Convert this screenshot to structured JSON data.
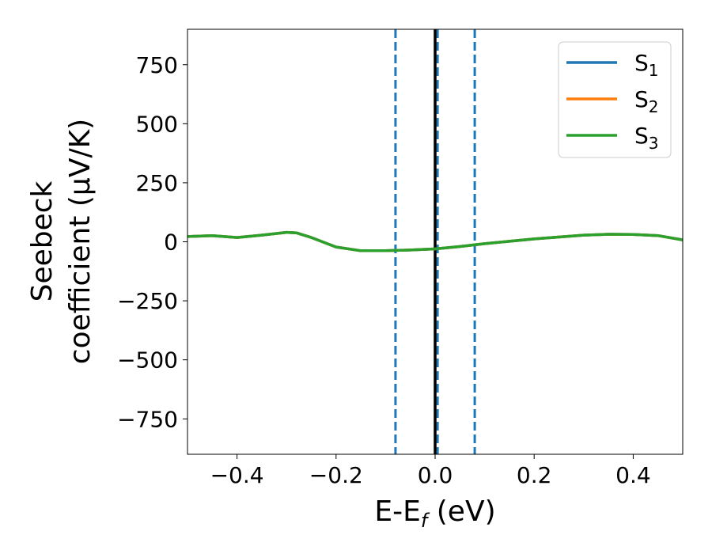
{
  "chart_data": {
    "type": "line",
    "xlabel": {
      "main": "E-E",
      "sub": "f",
      "tail": " (eV)"
    },
    "ylabel": {
      "line1": "Seebeck",
      "line2": "coefficient  (μV/K)"
    },
    "xlim": [
      -0.5,
      0.5
    ],
    "ylim": [
      -900,
      900
    ],
    "x_ticks": [
      -0.4,
      -0.2,
      0.0,
      0.2,
      0.4
    ],
    "x_tick_labels": [
      "−0.4",
      "−0.2",
      "0.0",
      "0.2",
      "0.4"
    ],
    "y_ticks": [
      750,
      500,
      250,
      0,
      -250,
      -500,
      -750
    ],
    "y_tick_labels": [
      "750",
      "500",
      "250",
      "0",
      "−250",
      "−500",
      "−750"
    ],
    "legend_position": "top-right",
    "grid": false,
    "x": [
      -0.5,
      -0.45,
      -0.4,
      -0.35,
      -0.3,
      -0.28,
      -0.25,
      -0.2,
      -0.15,
      -0.1,
      -0.05,
      0.0,
      0.05,
      0.1,
      0.15,
      0.2,
      0.25,
      0.3,
      0.35,
      0.4,
      0.45,
      0.5
    ],
    "series": [
      {
        "name": "S",
        "sub": "1",
        "color": "#1f77b4",
        "values": [
          22,
          26,
          18,
          28,
          40,
          38,
          18,
          -22,
          -38,
          -38,
          -35,
          -30,
          -20,
          -8,
          2,
          12,
          20,
          28,
          32,
          31,
          26,
          8
        ]
      },
      {
        "name": "S",
        "sub": "2",
        "color": "#ff7f0e",
        "values": [
          22,
          26,
          18,
          28,
          40,
          38,
          18,
          -22,
          -38,
          -38,
          -35,
          -30,
          -20,
          -8,
          2,
          12,
          20,
          28,
          32,
          31,
          26,
          8
        ]
      },
      {
        "name": "S",
        "sub": "3",
        "color": "#2ca02c",
        "values": [
          22,
          26,
          18,
          28,
          40,
          38,
          18,
          -22,
          -38,
          -38,
          -35,
          -30,
          -20,
          -8,
          2,
          12,
          20,
          28,
          32,
          31,
          26,
          8
        ]
      }
    ],
    "vlines": [
      {
        "x": -0.08,
        "color": "#1f77b4",
        "style": "dashed"
      },
      {
        "x": 0.005,
        "color": "#1f77b4",
        "style": "dashed"
      },
      {
        "x": 0.08,
        "color": "#1f77b4",
        "style": "dashed"
      },
      {
        "x": 0.0,
        "color": "#000000",
        "style": "solid"
      }
    ]
  }
}
